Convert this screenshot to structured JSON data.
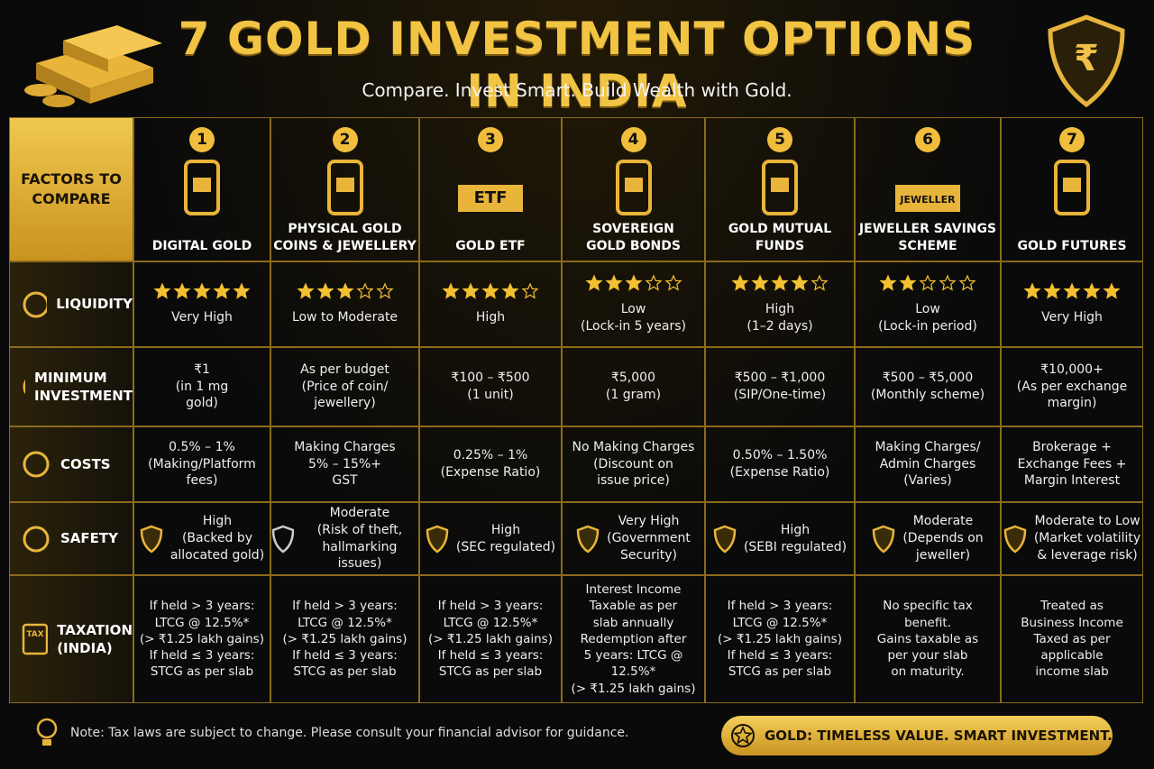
{
  "header": {
    "title": "7 GOLD INVESTMENT OPTIONS IN INDIA",
    "subtitle": "Compare. Invest Smart. Build Wealth with Gold.",
    "emblem": "₹"
  },
  "table": {
    "corner": "FACTORS TO\nCOMPARE",
    "options": [
      {
        "number": 1,
        "name": "DIGITAL GOLD"
      },
      {
        "number": 2,
        "name": "PHYSICAL GOLD\nCOINS & JEWELLERY"
      },
      {
        "number": 3,
        "name": "GOLD ETF",
        "icon_label": "ETF"
      },
      {
        "number": 4,
        "name": "SOVEREIGN\nGOLD BONDS"
      },
      {
        "number": 5,
        "name": "GOLD MUTUAL\nFUNDS"
      },
      {
        "number": 6,
        "name": "JEWELLER SAVINGS\nSCHEME",
        "icon_label": "JEWELLER"
      },
      {
        "number": 7,
        "name": "GOLD FUTURES"
      }
    ],
    "rows": [
      {
        "label": "LIQUIDITY",
        "stars": [
          5,
          3,
          4,
          3,
          4,
          2,
          5
        ],
        "cells": [
          "Very High",
          "Low to Moderate",
          "High",
          "Low\n(Lock-in 5 years)",
          "High\n(1–2 days)",
          "Low\n(Lock-in period)",
          "Very High"
        ]
      },
      {
        "label": "MINIMUM\nINVESTMENT",
        "cells": [
          "₹1\n(in 1 mg\ngold)",
          "As per budget\n(Price of coin/\njewellery)",
          "₹100 – ₹500\n(1 unit)",
          "₹5,000\n(1 gram)",
          "₹500 – ₹1,000\n(SIP/One-time)",
          "₹500 – ₹5,000\n(Monthly scheme)",
          "₹10,000+\n(As per exchange\nmargin)"
        ]
      },
      {
        "label": "COSTS",
        "cells": [
          "0.5% – 1%\n(Making/Platform\nfees)",
          "Making Charges\n5% – 15%+\nGST",
          "0.25% – 1%\n(Expense Ratio)",
          "No Making Charges\n(Discount on\nissue price)",
          "0.50% – 1.50%\n(Expense Ratio)",
          "Making Charges/\nAdmin Charges\n(Varies)",
          "Brokerage +\nExchange Fees +\nMargin Interest"
        ]
      },
      {
        "label": "SAFETY",
        "cells": [
          "High\n(Backed by\nallocated gold)",
          "Moderate\n(Risk of theft,\nhallmarking issues)",
          "High\n(SEC regulated)",
          "Very High\n(Government\nSecurity)",
          "High\n(SEBI regulated)",
          "Moderate\n(Depends on\njeweller)",
          "Moderate to Low\n(Market volatility\n& leverage risk)"
        ]
      },
      {
        "label": "TAXATION\n(INDIA)",
        "icon_label": "TAX",
        "cells": [
          "If held > 3 years:\nLTCG @ 12.5%*\n(> ₹1.25 lakh gains)\nIf held ≤ 3 years:\nSTCG as per slab",
          "If held > 3 years:\nLTCG @ 12.5%*\n(> ₹1.25 lakh gains)\nIf held ≤ 3 years:\nSTCG as per slab",
          "If held > 3 years:\nLTCG @ 12.5%*\n(> ₹1.25 lakh gains)\nIf held ≤ 3 years:\nSTCG as per slab",
          "Interest Income\nTaxable as per\nslab annually\nRedemption after\n5 years: LTCG @ 12.5%*\n(> ₹1.25 lakh gains)",
          "If held > 3 years:\nLTCG @ 12.5%*\n(> ₹1.25 lakh gains)\nIf held ≤ 3 years:\nSTCG as per slab",
          "No specific tax\nbenefit.\nGains taxable as\nper your slab\non maturity.",
          "Treated as\nBusiness Income\nTaxed as per\napplicable\nincome slab"
        ]
      }
    ]
  },
  "footer": {
    "note": "Note: Tax laws  are subject to change. Please consult your financial advisor for guidance.",
    "badge": "GOLD: TIMELESS VALUE. SMART INVESTMENT."
  }
}
